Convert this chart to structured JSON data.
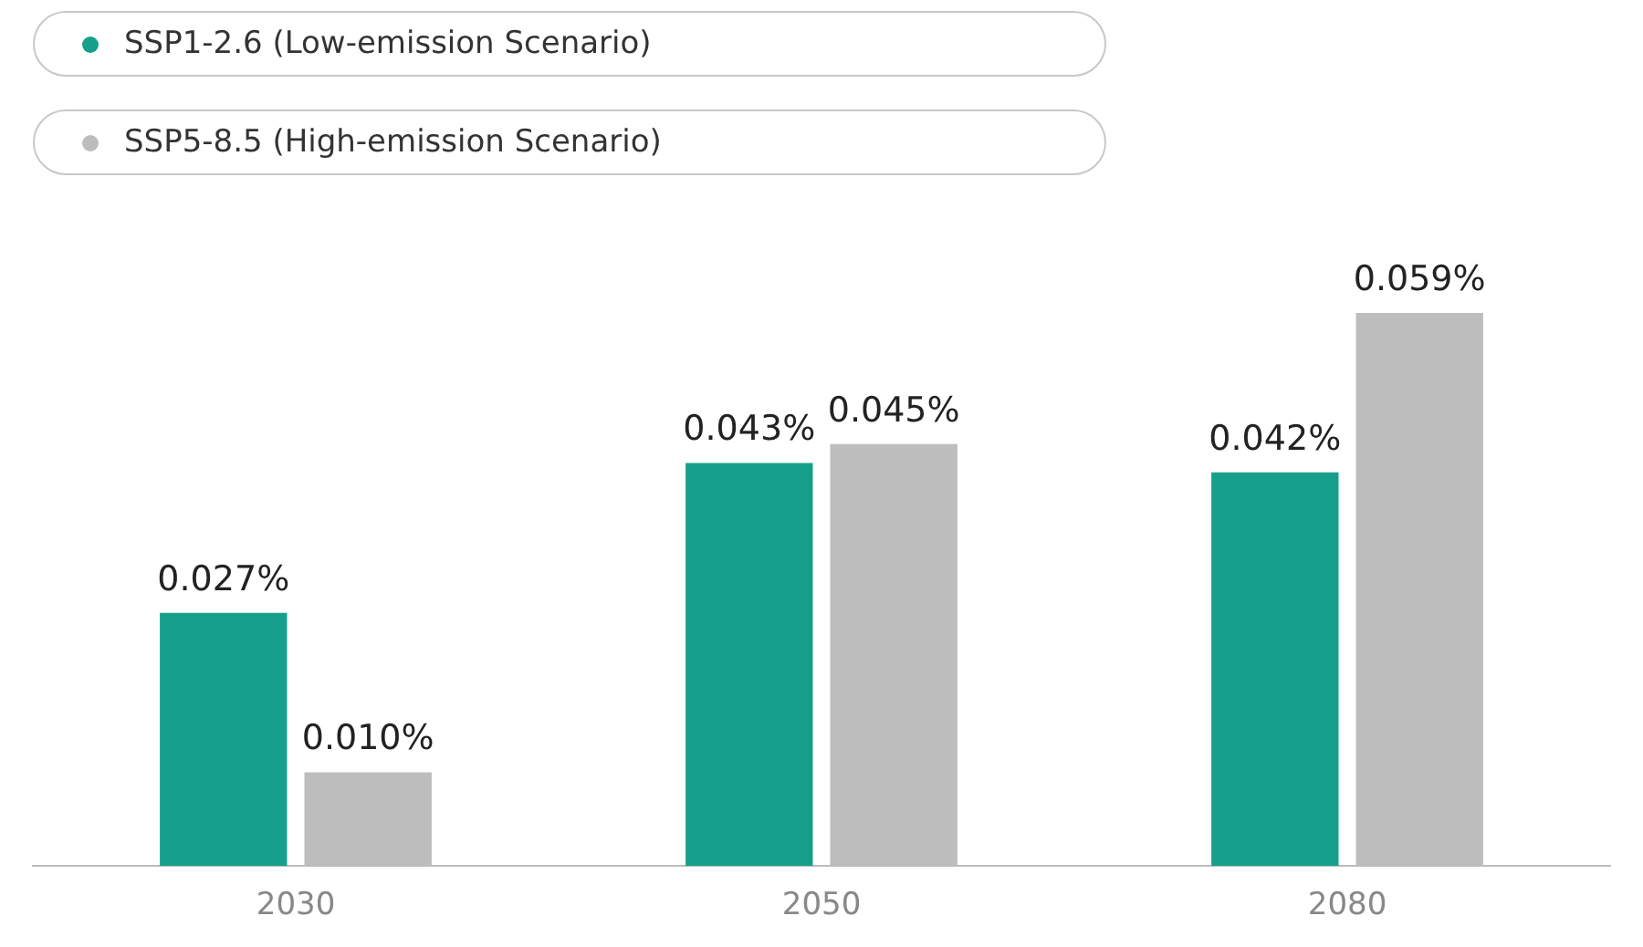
{
  "chart_data": {
    "type": "bar",
    "categories": [
      "2030",
      "2050",
      "2080"
    ],
    "series": [
      {
        "name": "SSP1-2.6 (Low-emission Scenario)",
        "color": "#16a08c",
        "values": [
          0.027,
          0.043,
          0.042
        ],
        "value_labels": [
          "0.027%",
          "0.043%",
          "0.042%"
        ]
      },
      {
        "name": "SSP5-8.5 (High-emission Scenario)",
        "color": "#bdbdbd",
        "values": [
          0.01,
          0.045,
          0.059
        ],
        "value_labels": [
          "0.010%",
          "0.045%",
          "0.059%"
        ]
      }
    ],
    "legend": "top left",
    "grid": false,
    "tick_labels": "x"
  }
}
